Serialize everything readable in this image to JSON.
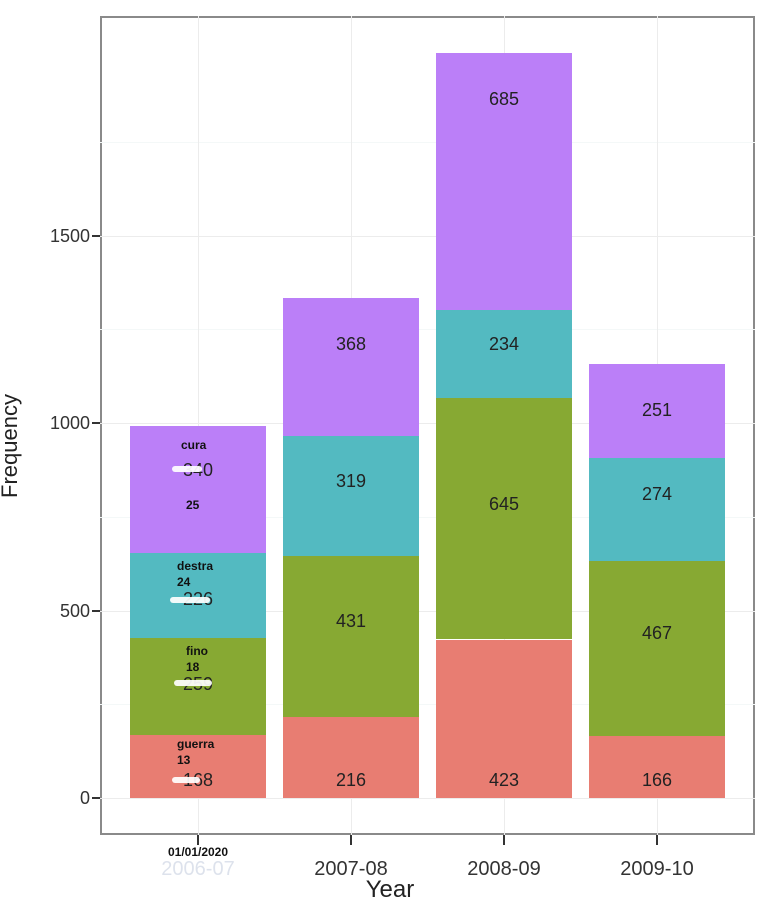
{
  "chart_data": {
    "type": "bar",
    "stacked": true,
    "title": "",
    "xlabel": "Year",
    "ylabel": "Frequency",
    "ylim": [
      0,
      2150
    ],
    "yticks": [
      0,
      500,
      1000,
      1500
    ],
    "grid": true,
    "legend": "none",
    "categories": [
      "2006-07",
      "2007-08",
      "2008-09",
      "2009-10"
    ],
    "series": [
      {
        "name": "guerra",
        "color": "#E87D72",
        "values": [
          168,
          216,
          423,
          166
        ]
      },
      {
        "name": "fino",
        "color": "#87A933",
        "values": [
          259,
          431,
          645,
          467
        ]
      },
      {
        "name": "destra",
        "color": "#53BAC1",
        "values": [
          226,
          319,
          234,
          274
        ]
      },
      {
        "name": "cura",
        "color": "#BB7FF8",
        "values": [
          340,
          368,
          685,
          251
        ]
      }
    ],
    "segment_labels": [
      [
        "168",
        "259",
        "226",
        "340"
      ],
      [
        "216",
        "431",
        "319",
        "368"
      ],
      [
        "423",
        "645",
        "234",
        "685"
      ],
      [
        "166",
        "467",
        "274",
        "251"
      ]
    ],
    "annotations": [
      {
        "category": "2006-07",
        "series": "cura",
        "text": "cura",
        "value": "25"
      },
      {
        "category": "2006-07",
        "series": "destra",
        "text": "destra",
        "value": "24"
      },
      {
        "category": "2006-07",
        "series": "fino",
        "text": "fino",
        "value": "18"
      },
      {
        "category": "2006-07",
        "series": "guerra",
        "text": "guerra",
        "value": "13"
      }
    ],
    "overlay_xtick_label": "01/01/2020"
  },
  "axis": {
    "x_label": "Year",
    "y_label": "Frequency",
    "y_ticks": [
      "0",
      "500",
      "1000",
      "1500"
    ],
    "x_ticks": [
      "2006-07",
      "2007-08",
      "2008-09",
      "2009-10"
    ]
  },
  "annot": {
    "cura": "cura",
    "cura_n": "25",
    "destra": "destra",
    "destra_n": "24",
    "fino": "fino",
    "fino_n": "18",
    "guerra": "guerra",
    "guerra_n": "13",
    "date": "01/01/2020"
  }
}
